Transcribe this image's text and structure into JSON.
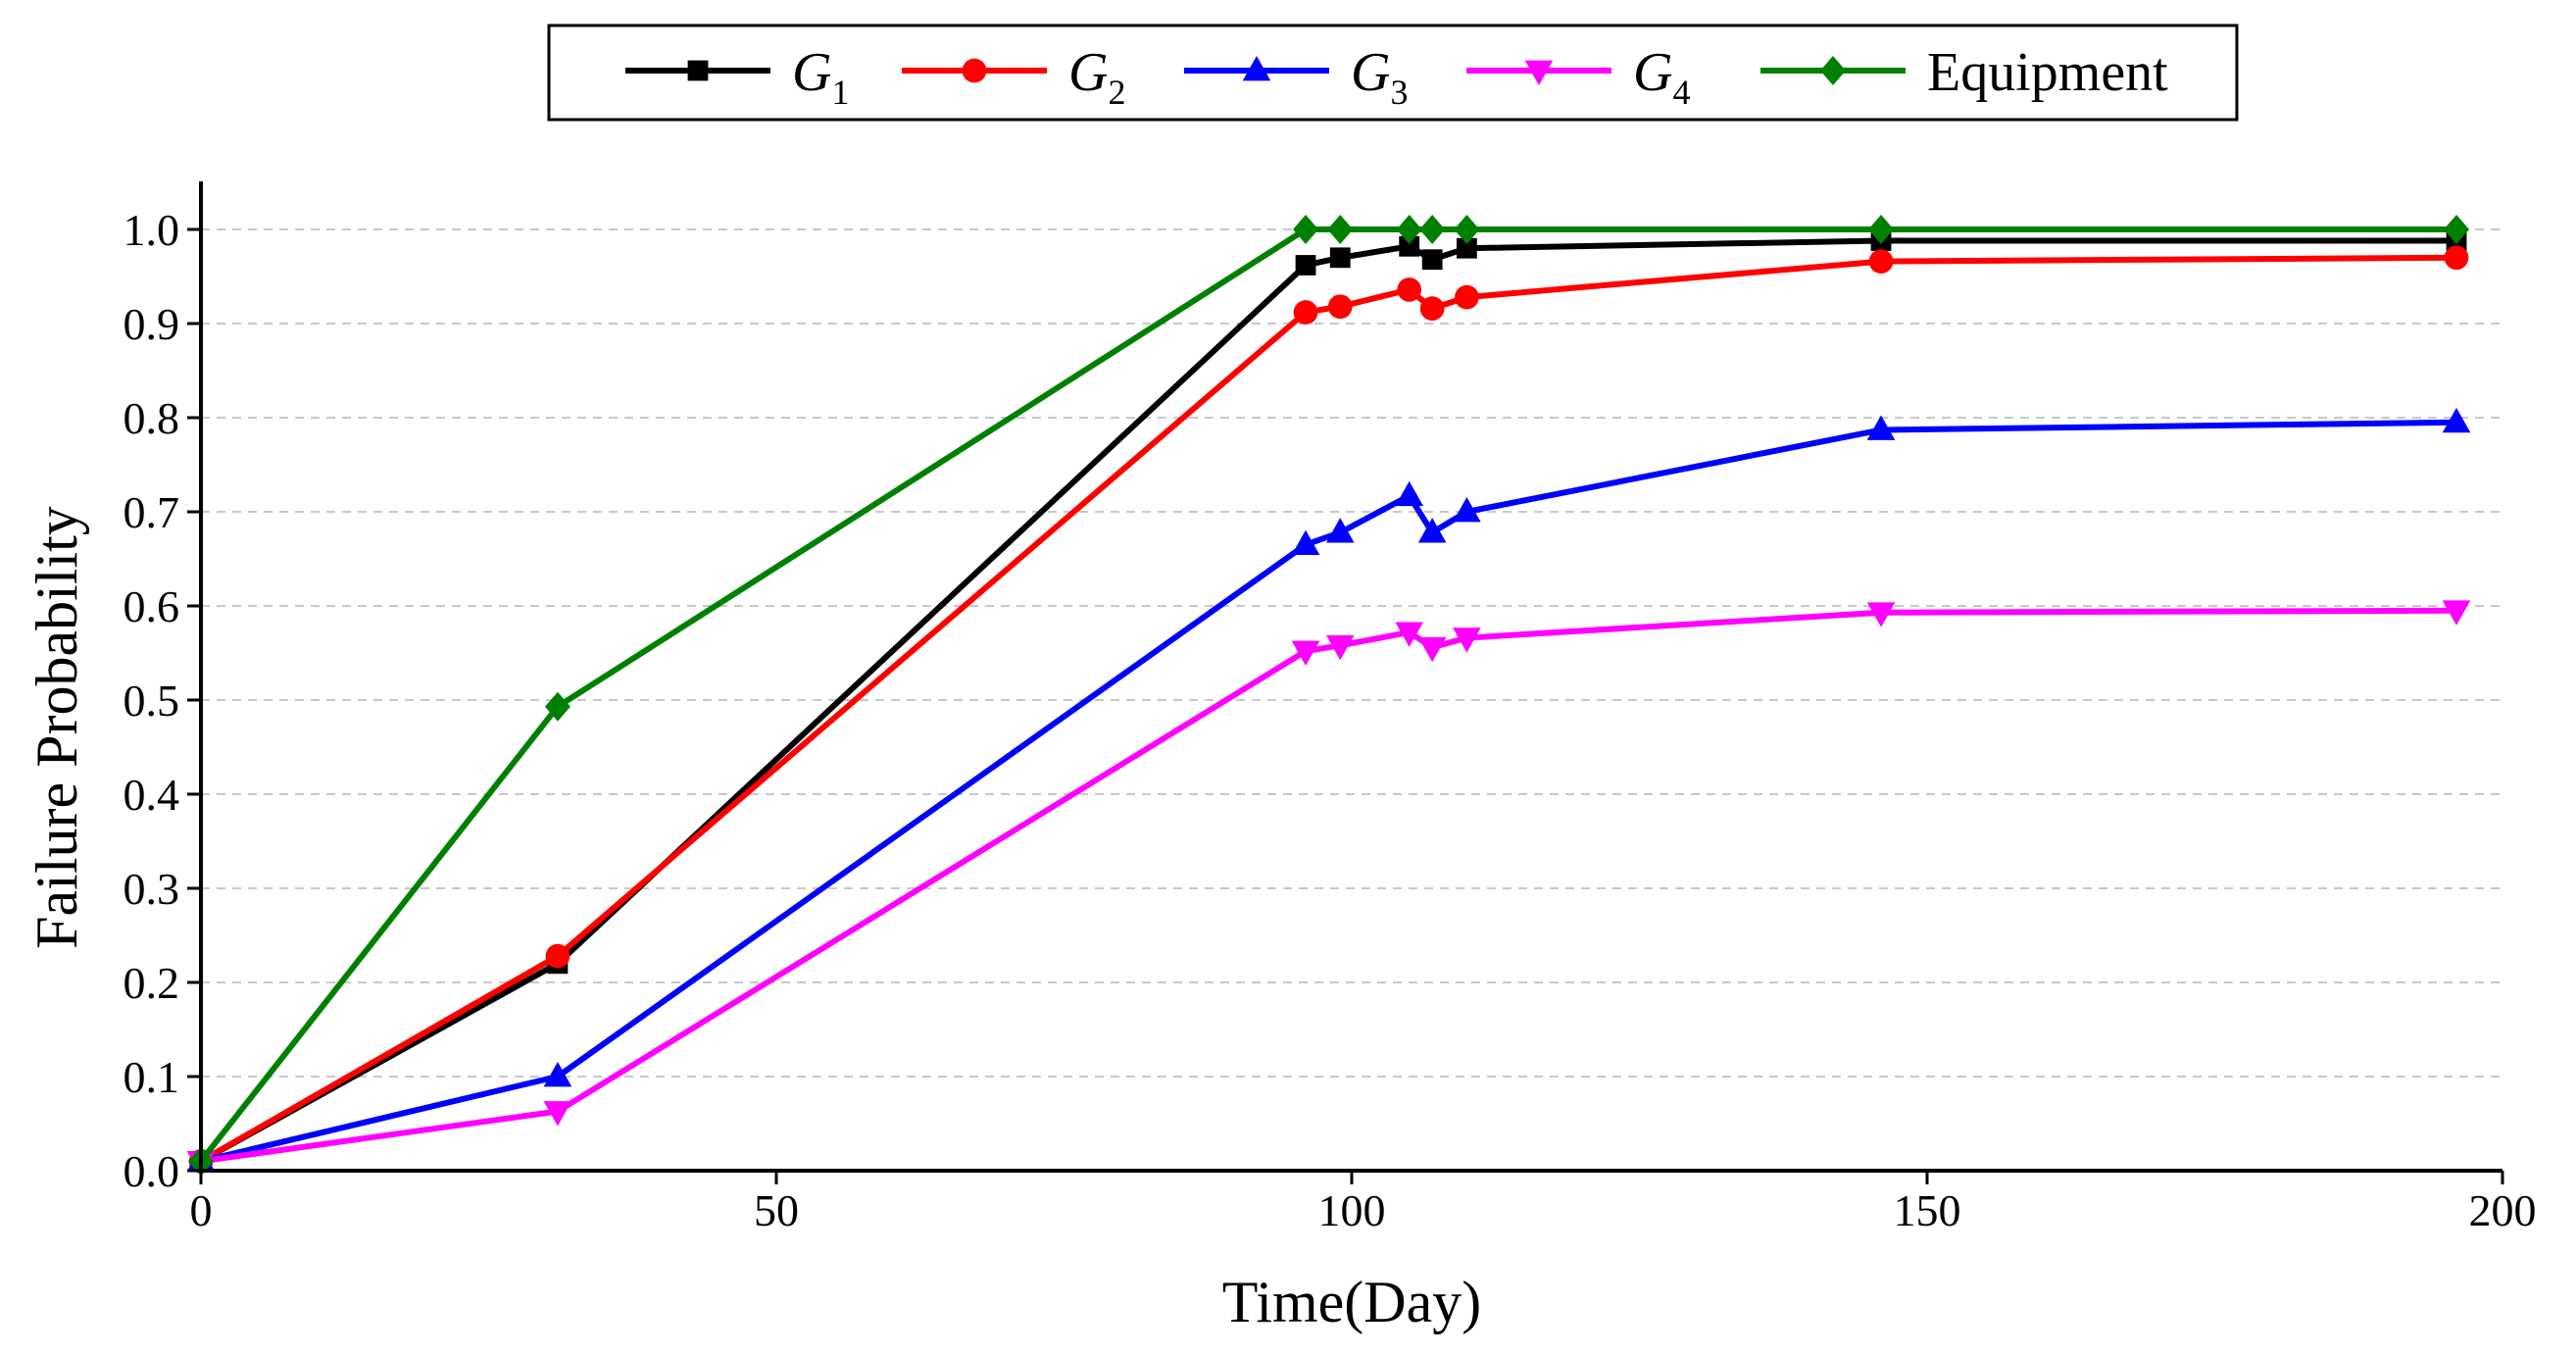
{
  "chart_data": {
    "type": "line",
    "title": "",
    "xlabel": "Time(Day)",
    "ylabel": "Failure Probability",
    "xlim": [
      0,
      200
    ],
    "ylim": [
      0,
      1.05
    ],
    "xticks": [
      0,
      50,
      100,
      150,
      200
    ],
    "yticks": [
      0.0,
      0.1,
      0.2,
      0.3,
      0.4,
      0.5,
      0.6,
      0.7,
      0.8,
      0.9,
      1.0
    ],
    "xtick_labels": [
      "0",
      "50",
      "100",
      "150",
      "200"
    ],
    "ytick_labels": [
      "0.0",
      "0.1",
      "0.2",
      "0.3",
      "0.4",
      "0.5",
      "0.6",
      "0.7",
      "0.8",
      "0.9",
      "1.0"
    ],
    "grid": "horizontal dashed",
    "legend_placement": "top-center",
    "series": [
      {
        "name": "G1",
        "label_main": "G",
        "label_sub": "1",
        "color": "#000000",
        "marker": "square",
        "points": [
          [
            0,
            0.01
          ],
          [
            31,
            0.22
          ],
          [
            96,
            0.962
          ],
          [
            99,
            0.97
          ],
          [
            105,
            0.982
          ],
          [
            107,
            0.968
          ],
          [
            110,
            0.98
          ],
          [
            146,
            0.988
          ],
          [
            196,
            0.988
          ]
        ]
      },
      {
        "name": "G2",
        "label_main": "G",
        "label_sub": "2",
        "color": "#ff0000",
        "marker": "circle",
        "points": [
          [
            0,
            0.01
          ],
          [
            31,
            0.228
          ],
          [
            96,
            0.912
          ],
          [
            99,
            0.918
          ],
          [
            105,
            0.936
          ],
          [
            107,
            0.916
          ],
          [
            110,
            0.928
          ],
          [
            146,
            0.966
          ],
          [
            196,
            0.97
          ]
        ]
      },
      {
        "name": "G3",
        "label_main": "G",
        "label_sub": "3",
        "color": "#0000ff",
        "marker": "triangle-up",
        "points": [
          [
            0,
            0.01
          ],
          [
            31,
            0.1
          ],
          [
            96,
            0.665
          ],
          [
            99,
            0.678
          ],
          [
            105,
            0.717
          ],
          [
            107,
            0.678
          ],
          [
            110,
            0.7
          ],
          [
            146,
            0.787
          ],
          [
            196,
            0.795
          ]
        ]
      },
      {
        "name": "G4",
        "label_main": "G",
        "label_sub": "4",
        "color": "#ff00ff",
        "marker": "triangle-down",
        "points": [
          [
            0,
            0.01
          ],
          [
            31,
            0.063
          ],
          [
            96,
            0.552
          ],
          [
            99,
            0.558
          ],
          [
            105,
            0.572
          ],
          [
            107,
            0.556
          ],
          [
            110,
            0.566
          ],
          [
            146,
            0.593
          ],
          [
            196,
            0.595
          ]
        ]
      },
      {
        "name": "Equipment",
        "label_main": "Equipment",
        "label_sub": "",
        "color": "#008000",
        "marker": "diamond",
        "points": [
          [
            0,
            0.01
          ],
          [
            31,
            0.493
          ],
          [
            96,
            1.0
          ],
          [
            99,
            1.0
          ],
          [
            105,
            1.0
          ],
          [
            107,
            1.0
          ],
          [
            110,
            1.0
          ],
          [
            146,
            1.0
          ],
          [
            196,
            1.0
          ]
        ]
      }
    ]
  }
}
